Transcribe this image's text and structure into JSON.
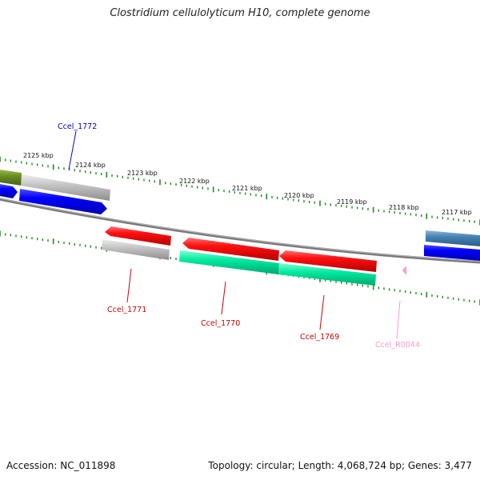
{
  "title": "Clostridium cellulolyticum H10, complete genome",
  "footer": {
    "accession": "Accession: NC_011898",
    "topology": "Topology: circular; Length: 4,068,724 bp; Genes: 3,477"
  },
  "kbp_labels": [
    "2125 kbp",
    "2124 kbp",
    "2123 kbp",
    "2122 kbp",
    "2121 kbp",
    "2120 kbp",
    "2119 kbp",
    "2118 kbp",
    "2117 kbp"
  ],
  "gene_labels": {
    "ccel_1772": "Ccel_1772",
    "ccel_1771": "Ccel_1771",
    "ccel_1770": "Ccel_1770",
    "ccel_1769": "Ccel_1769",
    "ccel_r0044": "Ccel_R0044"
  },
  "colors": {
    "backbone": "#808080",
    "tick": "#228b22",
    "cds_forward": "#0000ff",
    "cds_reverse": "#ff0000",
    "pseudogene": "#c0c0c0",
    "cog_teal": "#00e69b",
    "steelblue": "#4682b4",
    "olive": "#6b8e23",
    "rrna": "#ff99cc",
    "label_blue": "#0000cc",
    "label_red": "#cc0000",
    "label_pink": "#ff99cc"
  }
}
